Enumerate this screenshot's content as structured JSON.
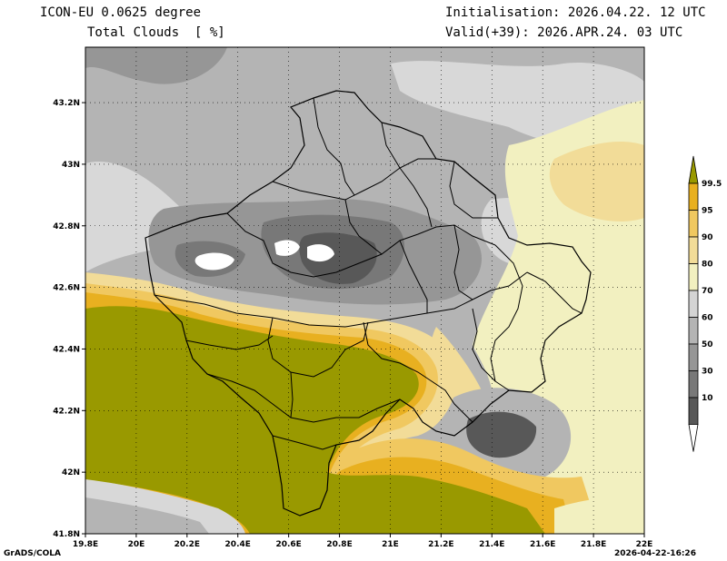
{
  "header": {
    "model": "ICON-EU 0.0625 degree",
    "variable": "Total Clouds  [ %]",
    "init": "Initialisation: 2026.04.22. 12 UTC",
    "valid": "Valid(+39): 2026.APR.24. 03 UTC"
  },
  "footer": {
    "credit": "GrADS/COLA",
    "timestamp": "2026-04-22-16:26"
  },
  "axes": {
    "lon_labels": [
      "19.8E",
      "20E",
      "20.2E",
      "20.4E",
      "20.6E",
      "20.8E",
      "21E",
      "21.2E",
      "21.4E",
      "21.6E",
      "21.8E",
      "22E"
    ],
    "lat_labels": [
      "43.2N",
      "43N",
      "42.8N",
      "42.6N",
      "42.4N",
      "42.2N",
      "42N",
      "41.8N"
    ]
  },
  "colorbar": {
    "labels": [
      "99.5",
      "95",
      "90",
      "80",
      "70",
      "60",
      "50",
      "30",
      "10"
    ],
    "colors": [
      "#999900",
      "#e8b020",
      "#f0c860",
      "#f2dc98",
      "#f2f0c0",
      "#d4d4d4",
      "#b4b4b4",
      "#969696",
      "#787878",
      "#585858",
      "#ffffff"
    ]
  },
  "palette": {
    "olive": "#999900",
    "amber": "#e8b020",
    "gold": "#f0c860",
    "tan": "#f2dc98",
    "cream": "#f2f0c0",
    "light_gray": "#d8d8d8",
    "mid_gray": "#b4b4b4",
    "gray": "#969696",
    "dark_gray": "#787878",
    "darker_gray": "#585858",
    "white": "#ffffff",
    "border": "#000000"
  }
}
